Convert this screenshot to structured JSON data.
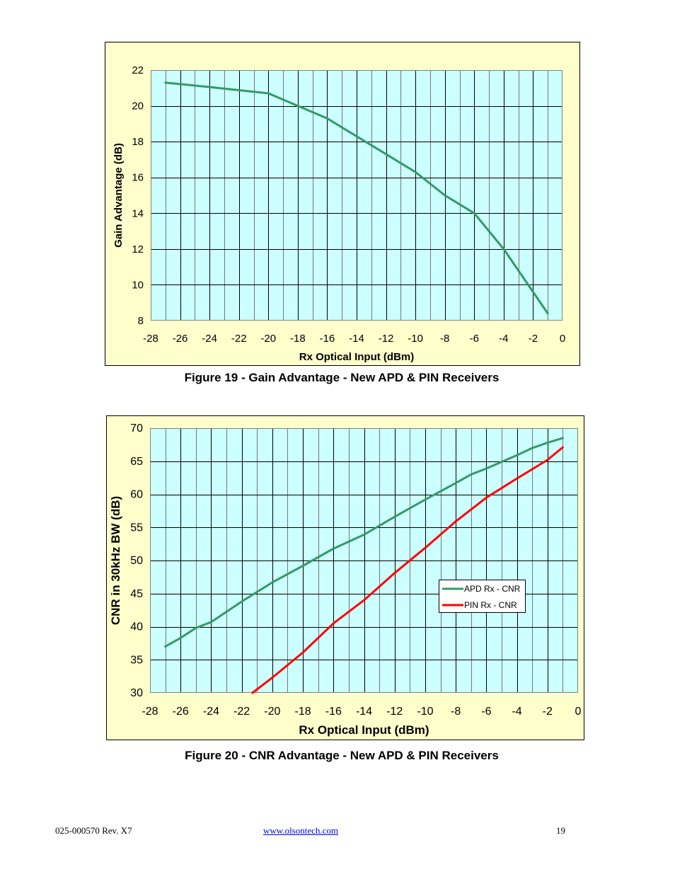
{
  "figure19": {
    "caption": "Figure 19 - Gain Advantage - New APD & PIN Receivers"
  },
  "figure20": {
    "caption": "Figure 20 - CNR Advantage - New APD & PIN Receivers"
  },
  "footer": {
    "doc_number": "025-000570 Rev. X7",
    "website": "www.olsontech.com",
    "page_number": "19"
  },
  "colors": {
    "plot_background": "#ccffff",
    "chart_background": "#ffffcc",
    "apd_line": "#339966",
    "pin_line": "#ff0000"
  },
  "chart_data": [
    {
      "type": "line",
      "title": "",
      "xlabel": "Rx Optical Input (dBm)",
      "ylabel": "Gain Advantage (dB)",
      "xlim": [
        -28,
        0
      ],
      "ylim": [
        8,
        22
      ],
      "xticks": [
        -28,
        -26,
        -24,
        -22,
        -20,
        -18,
        -16,
        -14,
        -12,
        -10,
        -8,
        -6,
        -4,
        -2,
        0
      ],
      "yticks": [
        8,
        10,
        12,
        14,
        16,
        18,
        20,
        22
      ],
      "grid": true,
      "series": [
        {
          "color": "#339966",
          "x": [
            -27,
            -24,
            -20,
            -18,
            -16,
            -14,
            -12,
            -10,
            -8,
            -6,
            -4,
            -2,
            -1
          ],
          "y": [
            21.3,
            21.05,
            20.7,
            20.0,
            19.3,
            18.3,
            17.3,
            16.3,
            15.0,
            14.0,
            12.0,
            9.6,
            8.4
          ]
        }
      ]
    },
    {
      "type": "line",
      "title": "",
      "xlabel": "Rx Optical Input (dBm)",
      "ylabel": "CNR in 30kHz BW (dB)",
      "xlim": [
        -28,
        0
      ],
      "ylim": [
        30,
        70
      ],
      "xticks": [
        -28,
        -26,
        -24,
        -22,
        -20,
        -18,
        -16,
        -14,
        -12,
        -10,
        -8,
        -6,
        -4,
        -2,
        0
      ],
      "yticks": [
        30,
        35,
        40,
        45,
        50,
        55,
        60,
        65,
        70
      ],
      "grid": true,
      "legend": "center-right",
      "series": [
        {
          "name": "APD Rx - CNR",
          "color": "#339966",
          "x": [
            -27,
            -26,
            -25,
            -24,
            -22,
            -20,
            -18,
            -16,
            -14,
            -12,
            -10,
            -8,
            -7,
            -6,
            -4,
            -3,
            -2,
            -1
          ],
          "y": [
            37.0,
            38.3,
            39.8,
            40.7,
            43.8,
            46.7,
            49.2,
            51.8,
            53.9,
            56.6,
            59.2,
            61.7,
            63.0,
            63.9,
            65.9,
            67.0,
            67.8,
            68.5
          ]
        },
        {
          "name": "PIN Rx - CNR",
          "color": "#ff0000",
          "x": [
            -21.3,
            -20,
            -18,
            -16,
            -14,
            -12,
            -10,
            -8,
            -6,
            -4,
            -2,
            -1
          ],
          "y": [
            30.0,
            32.3,
            36.1,
            40.5,
            44.0,
            48.1,
            51.9,
            55.9,
            59.5,
            62.4,
            65.2,
            67.1
          ]
        }
      ]
    }
  ]
}
